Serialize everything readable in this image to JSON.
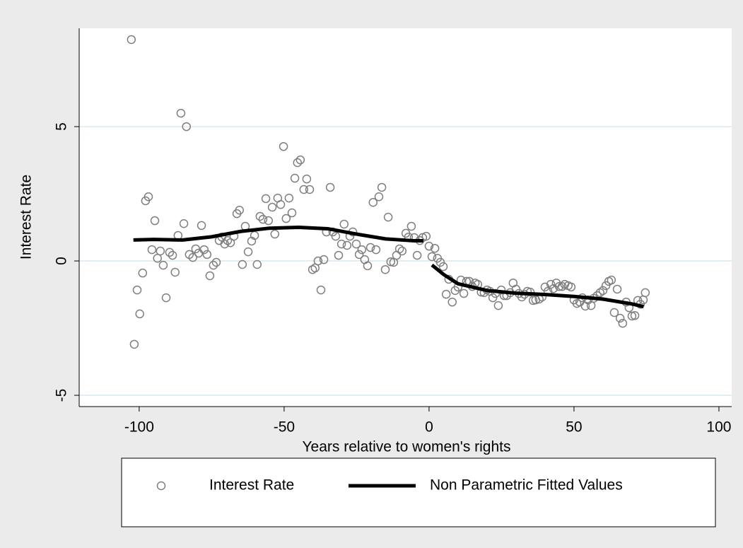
{
  "chart_data": {
    "type": "scatter",
    "xlabel": "Years relative to women's rights",
    "ylabel": "Interest Rate",
    "xlim": [
      -120.7,
      104.4
    ],
    "ylim": [
      -5.42,
      8.66
    ],
    "xticks": [
      -100,
      -50,
      0,
      50,
      100
    ],
    "yticks": [
      -5,
      0,
      5
    ],
    "grid": true,
    "legend": "bottom",
    "series": [
      {
        "name": "Interest Rate",
        "type": "scatter",
        "color": "#7f7f7f",
        "x": [
          -102.7,
          -101.7,
          -100.7,
          -99.8,
          -98.8,
          -97.8,
          -96.8,
          -95.6,
          -94.6,
          -93.7,
          -92.7,
          -91.7,
          -90.7,
          -89.5,
          -88.5,
          -87.6,
          -86.6,
          -85.6,
          -84.6,
          -83.7,
          -82.7,
          -81.5,
          -80.5,
          -79.5,
          -78.5,
          -77.6,
          -76.6,
          -75.6,
          -74.4,
          -73.4,
          -72.4,
          -71.5,
          -70.5,
          -69.5,
          -68.5,
          -67.3,
          -66.3,
          -65.4,
          -64.4,
          -63.4,
          -62.4,
          -61.2,
          -60.2,
          -59.3,
          -58.3,
          -57.3,
          -56.3,
          -55.4,
          -54.1,
          -53.2,
          -52.2,
          -51.2,
          -50.2,
          -49.3,
          -48.3,
          -47.3,
          -46.3,
          -45.4,
          -44.4,
          -43.2,
          -42.2,
          -41.2,
          -40.2,
          -39.3,
          -38.3,
          -37.3,
          -36.3,
          -35.4,
          -34.1,
          -33.2,
          -32.2,
          -31.2,
          -30.2,
          -29.3,
          -28.3,
          -27.3,
          -26.3,
          -25.1,
          -24.1,
          -23.2,
          -22.2,
          -21.2,
          -20.2,
          -19.3,
          -18.3,
          -17.3,
          -16.3,
          -15.1,
          -14.1,
          -13.2,
          -12.2,
          -11.2,
          -10.2,
          -9.3,
          -8.0,
          -7.1,
          -6.1,
          -5.1,
          -4.1,
          -3.2,
          -2.2,
          -1.0,
          0,
          1.0,
          2.0,
          2.9,
          3.9,
          4.9,
          5.9,
          6.8,
          8.0,
          9.0,
          10.0,
          11.0,
          12.0,
          12.9,
          13.9,
          14.9,
          15.9,
          16.8,
          18.0,
          19.0,
          20.0,
          21.0,
          22.0,
          22.9,
          23.9,
          24.9,
          25.9,
          26.8,
          28.0,
          29.0,
          30.0,
          31.0,
          32.0,
          32.9,
          33.9,
          34.9,
          35.9,
          36.8,
          38.0,
          39.0,
          40.0,
          41.0,
          42.0,
          42.9,
          43.9,
          44.9,
          45.9,
          46.8,
          48.0,
          49.0,
          50.0,
          51.0,
          52.0,
          52.9,
          53.9,
          54.9,
          55.9,
          56.8,
          58.0,
          59.0,
          60.0,
          61.0,
          62.0,
          62.9,
          63.9,
          64.9,
          65.9,
          66.8,
          68.0,
          69.0,
          70.0,
          71.0,
          72.0,
          72.9,
          73.9,
          74.6
        ],
        "values": [
          8.24,
          -3.1,
          -1.08,
          -1.97,
          -0.45,
          2.24,
          2.39,
          0.42,
          1.5,
          0.1,
          0.37,
          -0.16,
          -1.37,
          0.32,
          0.21,
          -0.42,
          0.95,
          5.5,
          1.39,
          5.0,
          0.24,
          0.13,
          0.45,
          0.29,
          1.32,
          0.42,
          0.24,
          -0.55,
          -0.16,
          -0.05,
          0.76,
          0.89,
          0.63,
          0.76,
          0.68,
          0.92,
          1.76,
          1.89,
          -0.13,
          1.29,
          0.34,
          0.74,
          0.95,
          -0.13,
          1.66,
          1.55,
          2.32,
          1.5,
          2.0,
          1.0,
          2.34,
          2.1,
          4.26,
          1.58,
          2.34,
          1.79,
          3.08,
          3.66,
          3.76,
          2.66,
          3.05,
          2.66,
          -0.32,
          -0.26,
          0.0,
          -1.08,
          0.05,
          1.08,
          2.74,
          1.08,
          0.92,
          0.21,
          0.63,
          1.37,
          0.58,
          0.92,
          1.08,
          0.63,
          0.24,
          0.42,
          0.05,
          -0.18,
          0.5,
          2.18,
          0.42,
          2.39,
          2.74,
          -0.32,
          1.63,
          -0.03,
          -0.05,
          0.21,
          0.45,
          0.37,
          1.03,
          0.89,
          1.29,
          0.87,
          0.21,
          0.76,
          0.87,
          0.92,
          0.55,
          0.16,
          0.47,
          0.1,
          -0.05,
          -0.21,
          -1.24,
          -0.68,
          -1.53,
          -1.1,
          -0.97,
          -0.71,
          -1.21,
          -0.76,
          -0.76,
          -0.95,
          -0.82,
          -0.87,
          -1.16,
          -1.18,
          -1.08,
          -1.13,
          -1.37,
          -1.21,
          -1.66,
          -1.08,
          -1.29,
          -1.29,
          -1.18,
          -0.82,
          -1.05,
          -1.21,
          -1.34,
          -1.24,
          -1.13,
          -1.16,
          -1.47,
          -1.45,
          -1.42,
          -1.34,
          -0.97,
          -1.13,
          -0.87,
          -1.03,
          -0.82,
          -0.95,
          -0.95,
          -0.87,
          -0.92,
          -0.97,
          -1.45,
          -1.58,
          -1.53,
          -1.37,
          -1.68,
          -1.45,
          -1.66,
          -1.39,
          -1.29,
          -1.18,
          -1.1,
          -0.92,
          -0.76,
          -0.71,
          -1.92,
          -1.05,
          -2.13,
          -2.32,
          -1.53,
          -1.74,
          -2.05,
          -2.03,
          -1.47,
          -1.61,
          -1.45,
          -1.18
        ]
      },
      {
        "name": "Non Parametric Fitted Values",
        "type": "line",
        "color": "#000000",
        "x": [
          -102,
          -95,
          -85,
          -75,
          -65,
          -55,
          -45,
          -35,
          -25,
          -15,
          -5,
          -2,
          null,
          1,
          5,
          10,
          20,
          30,
          40,
          50,
          60,
          70,
          74
        ],
        "values": [
          0.78,
          0.8,
          0.78,
          0.9,
          1.1,
          1.22,
          1.25,
          1.2,
          1.0,
          0.82,
          0.75,
          0.75,
          null,
          -0.15,
          -0.5,
          -0.85,
          -1.1,
          -1.2,
          -1.25,
          -1.32,
          -1.42,
          -1.6,
          -1.7
        ]
      }
    ]
  }
}
